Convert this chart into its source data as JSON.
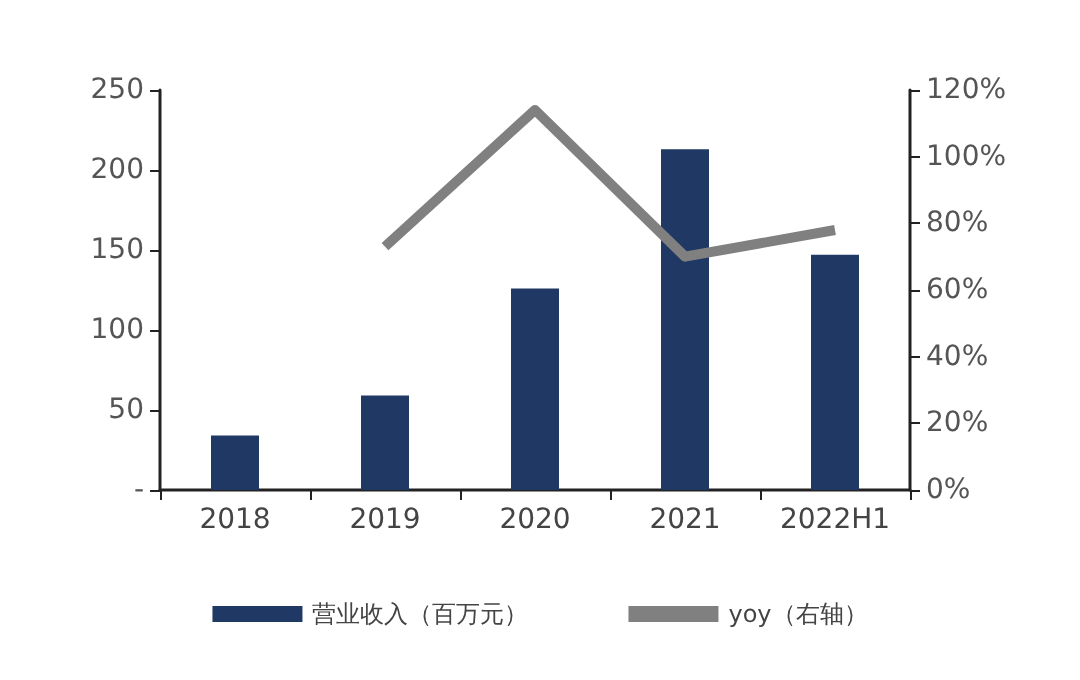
{
  "chart_data": {
    "type": "bar",
    "categories": [
      "2018",
      "2019",
      "2020",
      "2021",
      "2022H1"
    ],
    "series": [
      {
        "name": "营业收入（百万元）",
        "color": "#1f3864",
        "values": [
          34,
          59,
          126,
          213,
          147
        ]
      },
      {
        "name": "yoy（右轴）",
        "type": "line",
        "axis": "y2",
        "color": "#808080",
        "values": [
          null,
          73,
          114,
          70,
          78
        ]
      }
    ],
    "ylim": [
      0,
      250
    ],
    "yticks": [
      {
        "value": 0,
        "label": "-"
      },
      50,
      100,
      150,
      200,
      250
    ],
    "y2lim": [
      0,
      120
    ],
    "y2ticks": [
      {
        "value": 0,
        "label": "0%"
      },
      {
        "value": 20,
        "label": "20%"
      },
      {
        "value": 40,
        "label": "40%"
      },
      {
        "value": 60,
        "label": "60%"
      },
      {
        "value": 80,
        "label": "80%"
      },
      {
        "value": 100,
        "label": "100%"
      },
      {
        "value": 120,
        "label": "120%"
      }
    ],
    "grid": false,
    "legend": "bottom",
    "marker": "none"
  }
}
